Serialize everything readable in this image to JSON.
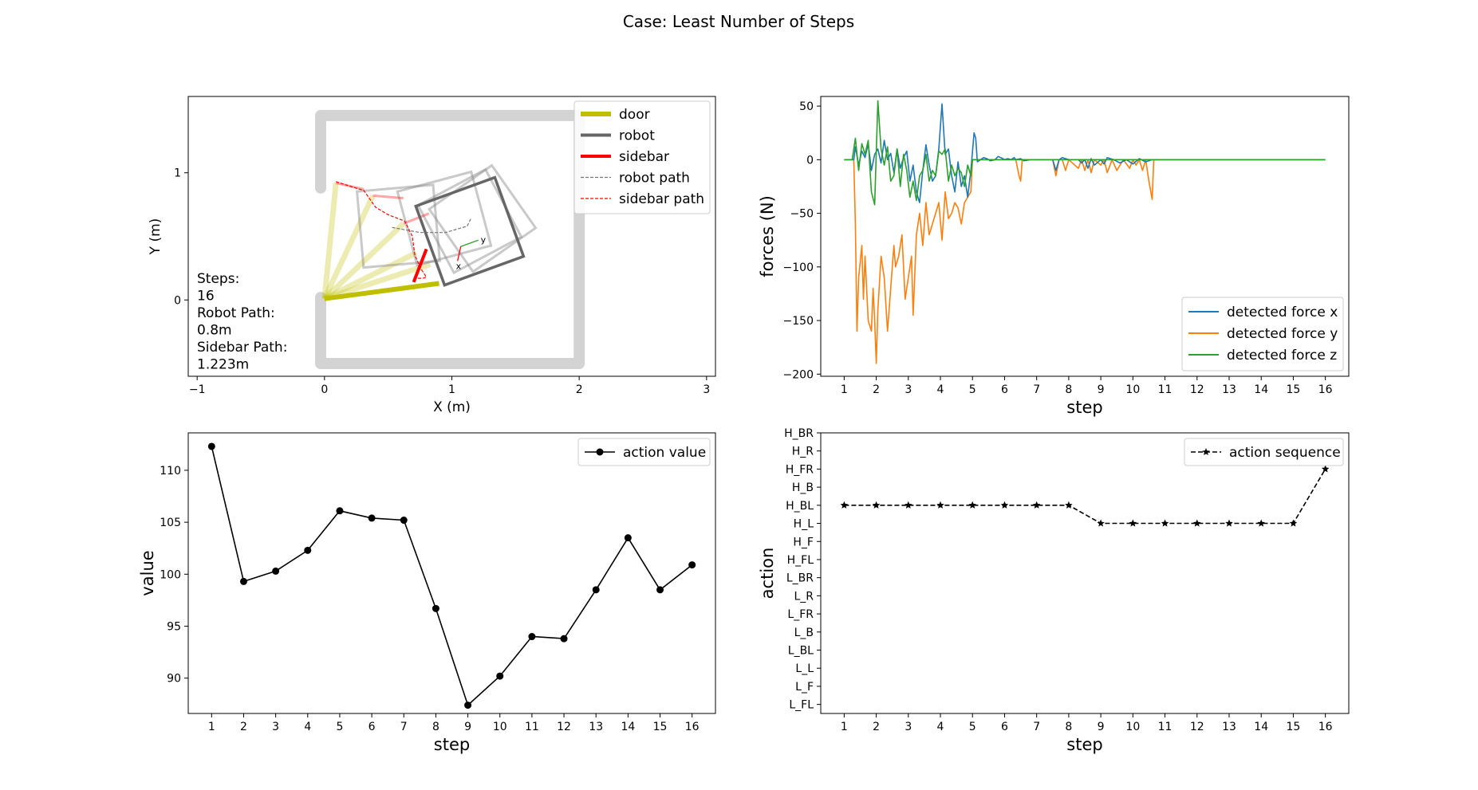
{
  "figure": {
    "suptitle": "Case: Least Number of Steps"
  },
  "chart_data": [
    {
      "type": "line",
      "panel": "trajectory",
      "xlabel": "X (m)",
      "ylabel": "Y (m)",
      "xlim": [
        -1.07,
        3.07
      ],
      "ylim": [
        -0.6,
        1.6
      ],
      "xticks": [
        "−1",
        "0",
        "1",
        "2",
        "3"
      ],
      "yticks": [
        "0",
        "1"
      ],
      "legend": [
        "door",
        "robot",
        "sidebar",
        "robot path",
        "sidebar path"
      ],
      "legend_position": "top-right",
      "annotation": [
        "Steps:",
        "16",
        "Robot Path:",
        "0.8m",
        "Sidebar Path:",
        "1.223m"
      ],
      "colors": {
        "door": "#bfbf00",
        "robot": "#666666",
        "sidebar": "#ff0000",
        "wall": "#d3d3d3",
        "robot_path": "#777777",
        "sidebar_path": "#ff0000"
      },
      "wall": [
        [
          -0.03,
          0.88
        ],
        [
          -0.03,
          1.45
        ],
        [
          2.0,
          1.45
        ],
        [
          2.0,
          -0.5
        ],
        [
          -0.03,
          -0.5
        ],
        [
          -0.03,
          0.02
        ]
      ],
      "door_final": [
        [
          0,
          0.01
        ],
        [
          0.9,
          0.13
        ]
      ],
      "door_ghosts": [
        [
          [
            0,
            0.01
          ],
          [
            0.09,
            0.92
          ]
        ],
        [
          [
            0,
            0.01
          ],
          [
            0.38,
            0.82
          ]
        ],
        [
          [
            0,
            0.01
          ],
          [
            0.62,
            0.6
          ]
        ],
        [
          [
            0,
            0.01
          ],
          [
            0.72,
            0.37
          ]
        ],
        [
          [
            0,
            0.01
          ],
          [
            0.83,
            0.28
          ]
        ]
      ],
      "robot_final": {
        "center": [
          1.14,
          0.54
        ],
        "half": 0.33,
        "angle_deg": 20
      },
      "robot_ghosts": [
        {
          "center": [
            0.58,
            0.58
          ],
          "half": 0.3,
          "angle_deg": 5
        },
        {
          "center": [
            0.94,
            0.64
          ],
          "half": 0.3,
          "angle_deg": 15
        },
        {
          "center": [
            1.14,
            0.62
          ],
          "half": 0.3,
          "angle_deg": 28
        },
        {
          "center": [
            1.24,
            0.64
          ],
          "half": 0.3,
          "angle_deg": 35
        }
      ],
      "sidebar_final": [
        [
          0.7,
          0.14
        ],
        [
          0.8,
          0.4
        ]
      ],
      "sidebar_ghosts": [
        [
          [
            0.09,
            0.92
          ],
          [
            0.31,
            0.87
          ]
        ],
        [
          [
            0.38,
            0.82
          ],
          [
            0.62,
            0.8
          ]
        ],
        [
          [
            0.62,
            0.6
          ],
          [
            0.82,
            0.68
          ]
        ]
      ],
      "robot_path": [
        [
          0.53,
          0.57
        ],
        [
          0.75,
          0.53
        ],
        [
          0.95,
          0.53
        ],
        [
          1.12,
          0.58
        ],
        [
          1.15,
          0.64
        ]
      ],
      "sidebar_path": [
        [
          0.09,
          0.93
        ],
        [
          0.31,
          0.86
        ],
        [
          0.4,
          0.73
        ],
        [
          0.5,
          0.67
        ],
        [
          0.63,
          0.62
        ],
        [
          0.69,
          0.5
        ],
        [
          0.71,
          0.35
        ],
        [
          0.76,
          0.24
        ],
        [
          0.8,
          0.18
        ],
        [
          0.77,
          0.17
        ],
        [
          0.72,
          0.17
        ]
      ],
      "frame_origin": [
        1.07,
        0.42
      ],
      "frame_axis_labels": [
        "x",
        "y"
      ]
    },
    {
      "type": "line",
      "panel": "forces",
      "xlabel": "step",
      "ylabel": "forces (N)",
      "xlim": [
        0.27,
        16.73
      ],
      "ylim": [
        -202,
        59
      ],
      "xticks": [
        1,
        2,
        3,
        4,
        5,
        6,
        7,
        8,
        9,
        10,
        11,
        12,
        13,
        14,
        15,
        16
      ],
      "yticks": [
        50,
        0,
        -50,
        -100,
        -150,
        -200
      ],
      "legend_position": "bottom-right",
      "series": [
        {
          "name": "detected force x",
          "color": "#1f77b4",
          "x": [
            1.0,
            1.3,
            1.35,
            1.45,
            1.55,
            1.65,
            1.75,
            1.85,
            1.95,
            2.05,
            2.15,
            2.25,
            2.35,
            2.45,
            2.55,
            2.65,
            2.75,
            2.85,
            2.95,
            3.05,
            3.15,
            3.25,
            3.35,
            3.45,
            3.55,
            3.65,
            3.75,
            3.85,
            3.95,
            4.05,
            4.15,
            4.25,
            4.35,
            4.45,
            4.55,
            4.65,
            4.75,
            4.85,
            4.95,
            5.05,
            5.1,
            5.15,
            5.25,
            5.35,
            5.45,
            5.55,
            5.7,
            5.8,
            5.95,
            6.0,
            6.1,
            6.2,
            6.3,
            6.35,
            6.5,
            6.6,
            6.8,
            7.0,
            7.5,
            7.6,
            7.7,
            7.8,
            8.0,
            8.3,
            8.4,
            8.5,
            8.6,
            8.7,
            8.8,
            9.0,
            9.1,
            9.2,
            9.4,
            9.6,
            9.8,
            10.0,
            10.2,
            10.4,
            10.6,
            11.0,
            16.0
          ],
          "values": [
            0,
            0,
            12,
            -5,
            8,
            2,
            15,
            -10,
            5,
            10,
            -3,
            18,
            0,
            6,
            -12,
            10,
            -8,
            2,
            8,
            -20,
            -5,
            -30,
            -40,
            -10,
            14,
            -5,
            -20,
            -15,
            10,
            52,
            5,
            10,
            -15,
            -30,
            -2,
            -25,
            -15,
            -35,
            -10,
            25,
            20,
            -2,
            0,
            2,
            1,
            -1,
            0,
            3,
            1,
            0,
            1,
            0,
            2,
            0,
            1,
            -1,
            0,
            0,
            0,
            -10,
            0,
            2,
            0,
            0,
            -3,
            0,
            -8,
            1,
            -5,
            0,
            -4,
            2,
            0,
            -3,
            0,
            -4,
            1,
            -2,
            0,
            0,
            0
          ]
        },
        {
          "name": "detected force y",
          "color": "#ff7f0e",
          "x": [
            1.0,
            1.3,
            1.35,
            1.4,
            1.45,
            1.55,
            1.6,
            1.65,
            1.75,
            1.85,
            1.9,
            1.95,
            2.0,
            2.05,
            2.15,
            2.25,
            2.35,
            2.45,
            2.55,
            2.6,
            2.7,
            2.8,
            2.9,
            3.0,
            3.1,
            3.15,
            3.25,
            3.35,
            3.45,
            3.55,
            3.65,
            3.75,
            3.85,
            3.95,
            4.05,
            4.15,
            4.25,
            4.35,
            4.45,
            4.55,
            4.65,
            4.75,
            4.85,
            4.95,
            5.0,
            5.05,
            5.15,
            5.25,
            5.35,
            5.45,
            5.55,
            5.65,
            5.75,
            5.85,
            5.95,
            6.05,
            6.15,
            6.25,
            6.35,
            6.45,
            6.5,
            6.55,
            7.0,
            7.5,
            7.6,
            7.7,
            7.8,
            7.9,
            8.0,
            8.3,
            8.4,
            8.5,
            8.6,
            8.7,
            8.8,
            9.0,
            9.1,
            9.2,
            9.35,
            9.5,
            9.7,
            9.9,
            10.0,
            10.1,
            10.2,
            10.3,
            10.4,
            10.5,
            10.6,
            10.65,
            11.0,
            16.0
          ],
          "values": [
            0,
            0,
            -60,
            -160,
            -110,
            -80,
            -130,
            -90,
            -150,
            -160,
            -120,
            -150,
            -190,
            -140,
            -90,
            -110,
            -160,
            -120,
            -80,
            -100,
            -90,
            -70,
            -130,
            -110,
            -90,
            -145,
            -70,
            -50,
            -80,
            -40,
            -70,
            -60,
            -50,
            -40,
            -75,
            -30,
            -55,
            -50,
            -40,
            -45,
            -60,
            -40,
            -35,
            -30,
            0,
            0,
            0,
            0,
            0,
            0,
            0,
            0,
            0,
            0,
            0,
            0,
            0,
            0,
            0,
            -15,
            -20,
            0,
            0,
            0,
            -15,
            0,
            0,
            -10,
            0,
            -8,
            0,
            -10,
            0,
            -12,
            0,
            -5,
            0,
            -12,
            0,
            -10,
            0,
            -8,
            0,
            -5,
            0,
            -10,
            0,
            -20,
            -37,
            0,
            0,
            0
          ]
        },
        {
          "name": "detected force z",
          "color": "#2ca02c",
          "x": [
            1.0,
            1.25,
            1.35,
            1.45,
            1.55,
            1.65,
            1.75,
            1.85,
            1.95,
            2.05,
            2.15,
            2.25,
            2.35,
            2.45,
            2.55,
            2.65,
            2.75,
            2.85,
            2.95,
            3.05,
            3.15,
            3.25,
            3.35,
            3.45,
            3.55,
            3.65,
            3.75,
            3.85,
            3.95,
            4.05,
            4.15,
            4.25,
            4.35,
            4.45,
            4.55,
            4.65,
            4.75,
            4.85,
            4.95,
            5.0,
            5.1,
            16.0
          ],
          "values": [
            0,
            0,
            20,
            -10,
            15,
            5,
            18,
            -30,
            -42,
            55,
            10,
            -5,
            12,
            -20,
            -15,
            10,
            -25,
            5,
            -10,
            -35,
            -20,
            -38,
            -15,
            -10,
            5,
            -20,
            -10,
            -15,
            8,
            5,
            10,
            -20,
            -5,
            -15,
            -8,
            -12,
            -25,
            -5,
            -15,
            0,
            0,
            0
          ]
        }
      ]
    },
    {
      "type": "line",
      "panel": "action-value",
      "xlabel": "step",
      "ylabel": "value",
      "xlim": [
        0.27,
        16.73
      ],
      "ylim": [
        86.6,
        113.6
      ],
      "xticks": [
        1,
        2,
        3,
        4,
        5,
        6,
        7,
        8,
        9,
        10,
        11,
        12,
        13,
        14,
        15,
        16
      ],
      "yticks": [
        110,
        105,
        100,
        95,
        90
      ],
      "legend_position": "top-right",
      "series": [
        {
          "name": "action value",
          "color": "#000000",
          "x": [
            1,
            2,
            3,
            4,
            5,
            6,
            7,
            8,
            9,
            10,
            11,
            12,
            13,
            14,
            15,
            16
          ],
          "values": [
            112.3,
            99.3,
            100.3,
            102.3,
            106.1,
            105.4,
            105.2,
            96.7,
            87.4,
            90.2,
            94.0,
            93.8,
            98.5,
            103.5,
            98.5,
            100.9
          ]
        }
      ]
    },
    {
      "type": "line",
      "panel": "action-sequence",
      "xlabel": "step",
      "ylabel": "action",
      "xlim": [
        0.27,
        16.73
      ],
      "ylim": [
        -0.5,
        15.0
      ],
      "xticks": [
        1,
        2,
        3,
        4,
        5,
        6,
        7,
        8,
        9,
        10,
        11,
        12,
        13,
        14,
        15,
        16
      ],
      "categories": [
        "L_FL",
        "L_F",
        "L_L",
        "L_BL",
        "L_B",
        "L_FR",
        "L_R",
        "L_BR",
        "H_FL",
        "H_F",
        "H_L",
        "H_BL",
        "H_B",
        "H_FR",
        "H_R",
        "H_BR"
      ],
      "legend_position": "top-right",
      "series": [
        {
          "name": "action sequence",
          "color": "#000000",
          "x": [
            1,
            2,
            3,
            4,
            5,
            6,
            7,
            8,
            9,
            10,
            11,
            12,
            13,
            14,
            15,
            16
          ],
          "values": [
            "H_BL",
            "H_BL",
            "H_BL",
            "H_BL",
            "H_BL",
            "H_BL",
            "H_BL",
            "H_BL",
            "H_L",
            "H_L",
            "H_L",
            "H_L",
            "H_L",
            "H_L",
            "H_L",
            "H_FR"
          ]
        }
      ]
    }
  ]
}
